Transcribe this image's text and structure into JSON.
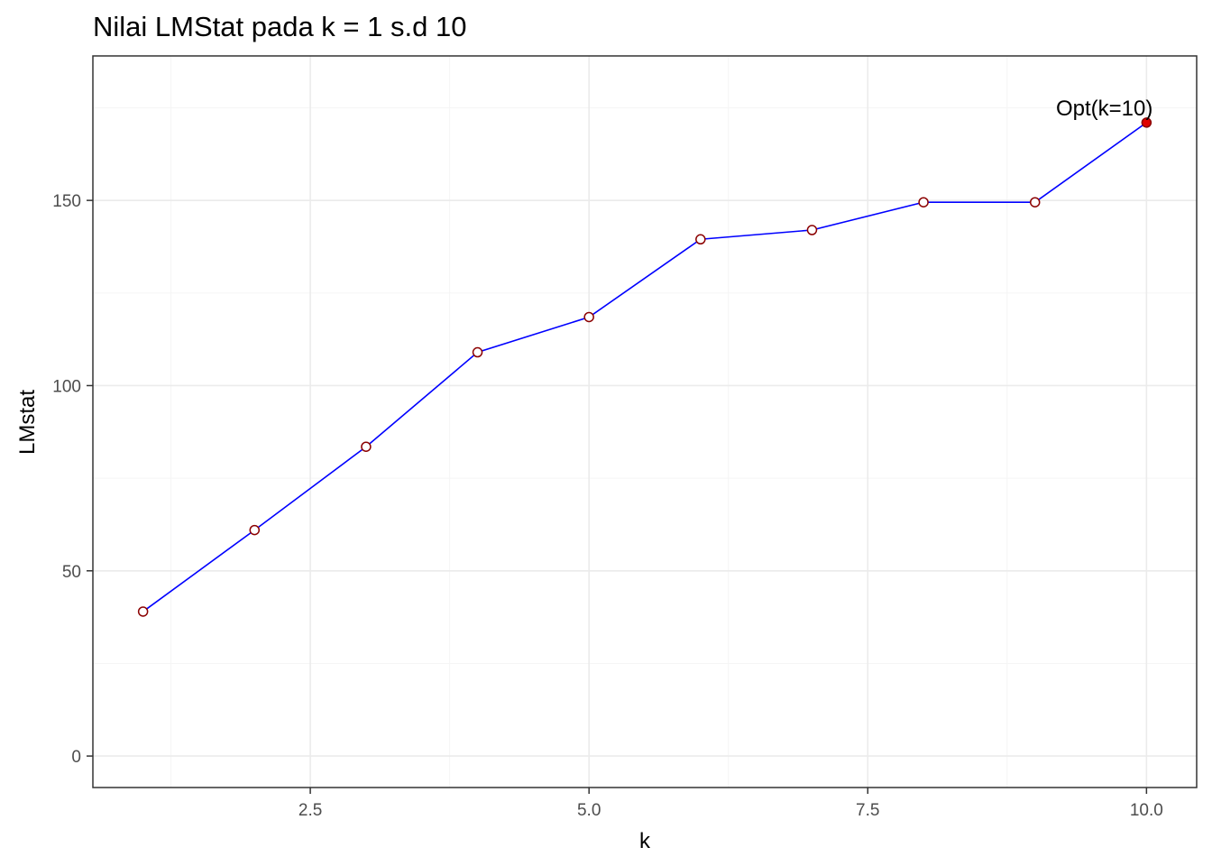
{
  "chart_data": {
    "type": "line",
    "title": "Nilai LMStat pada k = 1 s.d 10",
    "xlabel": "k",
    "ylabel": "LMstat",
    "x": [
      1,
      2,
      3,
      4,
      5,
      6,
      7,
      8,
      9,
      10
    ],
    "series": [
      {
        "values": [
          39,
          61,
          83.5,
          109,
          118.5,
          139.5,
          142,
          149.5,
          149.5,
          171
        ]
      }
    ],
    "xlim": [
      0.55,
      10.45
    ],
    "ylim": [
      -8.5,
      189
    ],
    "xticks": [
      2.5,
      5.0,
      7.5,
      10.0
    ],
    "xtick_labels": [
      "2.5",
      "5.0",
      "7.5",
      "10.0"
    ],
    "yticks": [
      0,
      50,
      100,
      150
    ],
    "ytick_labels": [
      "0",
      "50",
      "100",
      "150"
    ],
    "grid": true,
    "optimum": {
      "x": 10,
      "label": "Opt(k=10)"
    },
    "colors": {
      "line": "#0000ff",
      "point_stroke": "#8b0000",
      "point_fill": "#ffffff",
      "optimum_fill": "#e00000",
      "grid_major": "#ebebeb",
      "grid_minor": "#f5f5f5",
      "panel_border": "#333333"
    }
  }
}
